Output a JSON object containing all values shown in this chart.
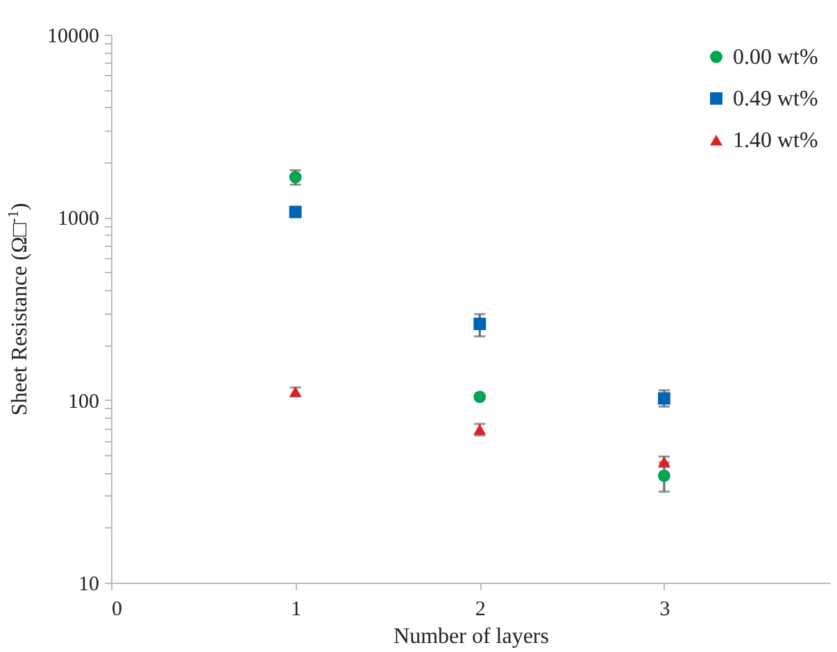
{
  "chart_data": {
    "type": "scatter",
    "xlabel": "Number of layers",
    "ylabel": "Sheet Resistance (Ω□$^{-1}$)",
    "x": [
      1,
      2,
      3
    ],
    "series": [
      {
        "name": "0.00 wt%",
        "color": "#00a651",
        "marker": "circle",
        "values": [
          1660,
          104,
          38.5
        ],
        "errors": [
          150,
          null,
          7
        ]
      },
      {
        "name": "0.49 wt%",
        "color": "#0066b3",
        "marker": "square",
        "values": [
          1070,
          261,
          102
        ],
        "errors": [
          null,
          [
            223,
            295
          ],
          [
            92,
            113
          ]
        ]
      },
      {
        "name": "1.40 wt%",
        "color": "#e31e24",
        "marker": "triangle",
        "values": [
          111,
          69,
          46
        ],
        "errors": [
          6,
          5,
          3
        ]
      }
    ],
    "log": "y",
    "xlim": [
      0,
      3.9
    ],
    "xticks": [
      0,
      1,
      2,
      3
    ],
    "ylim": [
      10,
      10000
    ],
    "yticks": [
      10,
      {
        "value": 20,
        "label": null
      },
      {
        "value": 30,
        "label": null
      },
      {
        "value": 40,
        "label": null
      },
      {
        "value": 50,
        "label": null
      },
      {
        "value": 60,
        "label": null
      },
      {
        "value": 70,
        "label": null
      },
      {
        "value": 80,
        "label": null
      },
      {
        "value": 90,
        "label": null
      },
      100,
      {
        "value": 200,
        "label": null
      },
      {
        "value": 300,
        "label": null
      },
      {
        "value": 400,
        "label": null
      },
      {
        "value": 500,
        "label": null
      },
      {
        "value": 600,
        "label": null
      },
      {
        "value": 700,
        "label": null
      },
      {
        "value": 800,
        "label": null
      },
      {
        "value": 900,
        "label": null
      },
      1000,
      {
        "value": 2000,
        "label": null
      },
      {
        "value": 3000,
        "label": null
      },
      {
        "value": 4000,
        "label": null
      },
      {
        "value": 5000,
        "label": null
      },
      {
        "value": 6000,
        "label": null
      },
      {
        "value": 7000,
        "label": null
      },
      {
        "value": 8000,
        "label": null
      },
      {
        "value": 9000,
        "label": null
      },
      10000
    ],
    "grid": false,
    "legend": "top right"
  }
}
